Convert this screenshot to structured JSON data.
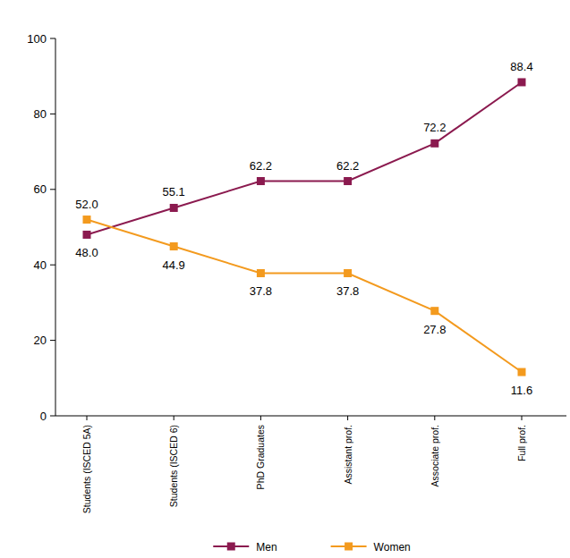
{
  "chart_data": {
    "type": "line",
    "categories": [
      "Students (ISCED 5A)",
      "Students (ISCED 6)",
      "PhD Graduates",
      "Assistant prof.",
      "Associate prof.",
      "Full prof."
    ],
    "series": [
      {
        "name": "Men",
        "color": "#8b1a4f",
        "marker": "square",
        "values": [
          48.0,
          55.1,
          62.2,
          62.2,
          72.2,
          88.4
        ],
        "value_labels": [
          "48.0",
          "55.1",
          "62.2",
          "62.2",
          "72.2",
          "88.4"
        ]
      },
      {
        "name": "Women",
        "color": "#f39a1e",
        "marker": "square",
        "values": [
          52.0,
          44.9,
          37.8,
          37.8,
          27.8,
          11.6
        ],
        "value_labels": [
          "52.0",
          "44.9",
          "37.8",
          "37.8",
          "27.8",
          "11.6"
        ]
      }
    ],
    "ylim": [
      0,
      100
    ],
    "yticks": [
      0,
      20,
      40,
      60,
      80,
      100
    ],
    "grid": false,
    "legend": "bottom",
    "data_labels": true
  }
}
